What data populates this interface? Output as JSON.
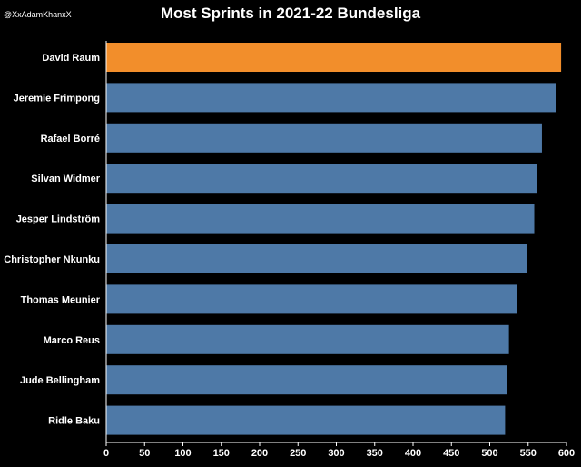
{
  "watermark": "@XxAdamKhanxX",
  "chart_data": {
    "type": "bar",
    "orientation": "horizontal",
    "title": "Most Sprints in 2021-22 Bundesliga",
    "categories": [
      "David Raum",
      "Jeremie Frimpong",
      "Rafael Borré",
      "Silvan Widmer",
      "Jesper Lindström",
      "Christopher Nkunku",
      "Thomas Meunier",
      "Marco Reus",
      "Jude Bellingham",
      "Ridle Baku"
    ],
    "values": [
      593,
      586,
      568,
      561,
      558,
      549,
      535,
      525,
      523,
      520
    ],
    "highlight_index": 0,
    "xlim": [
      0,
      600
    ],
    "xticks": [
      0,
      50,
      100,
      150,
      200,
      250,
      300,
      350,
      400,
      450,
      500,
      550,
      600
    ],
    "grid": false,
    "colors": {
      "background": "#000000",
      "bar": "#4e79a7",
      "highlight": "#f28e2b",
      "text": "#ffffff",
      "axis": "#ffffff"
    }
  }
}
